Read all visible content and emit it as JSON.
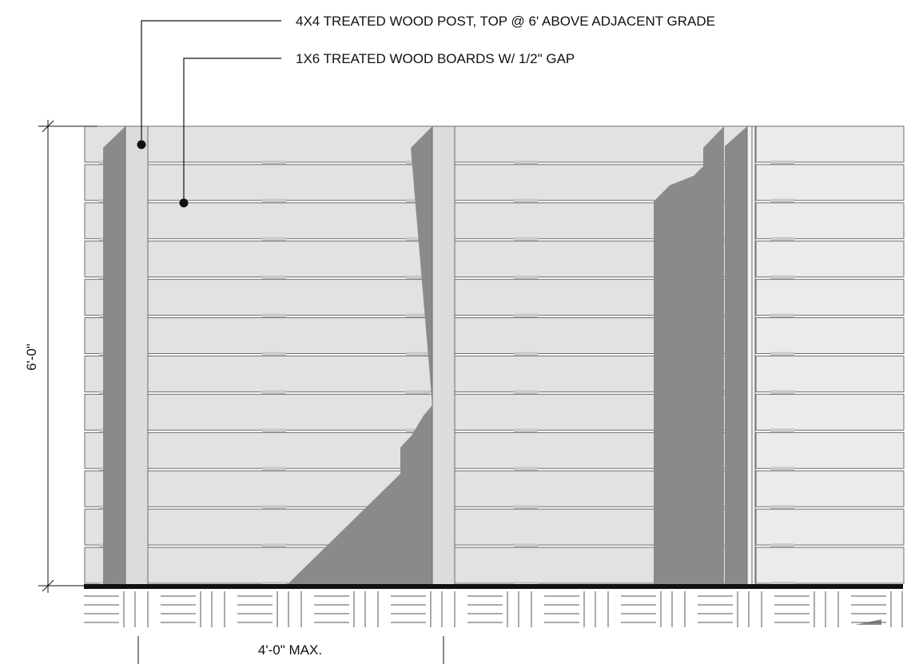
{
  "notes": {
    "post": "4X4 TREATED WOOD POST, TOP @ 6' ABOVE ADJACENT GRADE",
    "boards": "1X6 TREATED WOOD BOARDS W/ 1/2\" GAP"
  },
  "dimensions": {
    "height": "6'-0\"",
    "post_spacing": "4'-0\" MAX."
  },
  "colors": {
    "board": "#e2e2e2",
    "board_light": "#ebebeb",
    "post": "#dcdcdc",
    "shadow": "#8a8a8a",
    "ground": "#111111"
  },
  "fence": {
    "board_count": 12
  }
}
